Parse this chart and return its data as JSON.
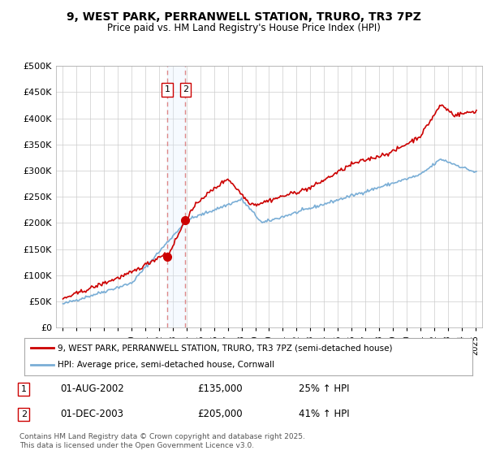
{
  "title_line1": "9, WEST PARK, PERRANWELL STATION, TRURO, TR3 7PZ",
  "title_line2": "Price paid vs. HM Land Registry's House Price Index (HPI)",
  "legend_label_red": "9, WEST PARK, PERRANWELL STATION, TRURO, TR3 7PZ (semi-detached house)",
  "legend_label_blue": "HPI: Average price, semi-detached house, Cornwall",
  "footer": "Contains HM Land Registry data © Crown copyright and database right 2025.\nThis data is licensed under the Open Government Licence v3.0.",
  "transaction1": {
    "label": "1",
    "date_str": "01-AUG-2002",
    "price_str": "£135,000",
    "hpi_str": "25% ↑ HPI",
    "year": 2002.583
  },
  "transaction2": {
    "label": "2",
    "date_str": "01-DEC-2003",
    "price_str": "£205,000",
    "hpi_str": "41% ↑ HPI",
    "year": 2003.917
  },
  "transaction1_price": 135000,
  "transaction2_price": 205000,
  "ylim": [
    0,
    500000
  ],
  "xlim_left": 1994.5,
  "xlim_right": 2025.5,
  "red_color": "#cc0000",
  "blue_color": "#7aaed6",
  "shade_color": "#ddeeff",
  "background_color": "#ffffff",
  "grid_color": "#cccccc",
  "marker_box_color": "#cc0000",
  "vline_color": "#dd8888",
  "yticks": [
    0,
    50000,
    100000,
    150000,
    200000,
    250000,
    300000,
    350000,
    400000,
    450000,
    500000
  ],
  "xticks": [
    1995,
    1996,
    1997,
    1998,
    1999,
    2000,
    2001,
    2002,
    2003,
    2004,
    2005,
    2006,
    2007,
    2008,
    2009,
    2010,
    2011,
    2012,
    2013,
    2014,
    2015,
    2016,
    2017,
    2018,
    2019,
    2020,
    2021,
    2022,
    2023,
    2024,
    2025
  ]
}
